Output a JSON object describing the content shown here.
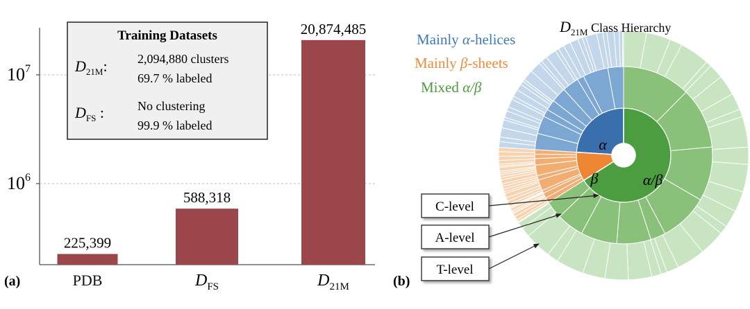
{
  "chart_data": [
    {
      "type": "bar",
      "panel_label": "(a)",
      "scale": "log",
      "categories": [
        "PDB",
        "D_FS",
        "D_21M"
      ],
      "values": [
        225399,
        588318,
        20874485
      ],
      "value_labels": [
        "225,399",
        "588,318",
        "20,874,485"
      ],
      "bar_color": "#9a464b",
      "yticks": [
        {
          "value": 10000000,
          "base": "10",
          "exp": "7"
        },
        {
          "value": 1000000,
          "base": "10",
          "exp": "6"
        }
      ],
      "ylim": [
        170000,
        40000000
      ],
      "grid": "dashed horizontal at ticks",
      "inset": {
        "title": "Training Datasets",
        "rows": [
          {
            "symbol": "D",
            "sub": "21M",
            "sep": ":",
            "lines": [
              "2,094,880 clusters",
              "69.7 % labeled"
            ]
          },
          {
            "symbol": "D",
            "sub": "FS",
            "sep": " :",
            "lines": [
              "No clustering",
              "99.9 % labeled"
            ]
          }
        ]
      }
    },
    {
      "type": "sunburst",
      "panel_label": "(b)",
      "title": {
        "symbol": "D",
        "sub": "21M",
        "text": " Class Hierarchy"
      },
      "legend": [
        {
          "prefix": "Mainly ",
          "greek": "α",
          "suffix": "-helices",
          "color": "#3e7ab7"
        },
        {
          "prefix": "Mainly ",
          "greek": "β",
          "suffix": "-sheets",
          "color": "#ee8a3a"
        },
        {
          "prefix": "Mixed ",
          "greek": "α/β",
          "suffix": "",
          "color": "#4a9c3c"
        }
      ],
      "classes": [
        {
          "label": "α",
          "fraction": 0.24,
          "color": "#3a6fae",
          "ring2_color": "#7ba7d2",
          "ring3_color": "#c4d7ea"
        },
        {
          "label": "β",
          "fraction": 0.1,
          "color": "#ee8532",
          "ring2_color": "#f2ad73",
          "ring3_color": "#f8d3b0"
        },
        {
          "label": "α/β",
          "fraction": 0.66,
          "color": "#4c9c40",
          "ring2_color": "#89c17b",
          "ring3_color": "#c8e4c0"
        }
      ],
      "level_labels": [
        "C-level",
        "A-level",
        "T-level"
      ]
    }
  ]
}
